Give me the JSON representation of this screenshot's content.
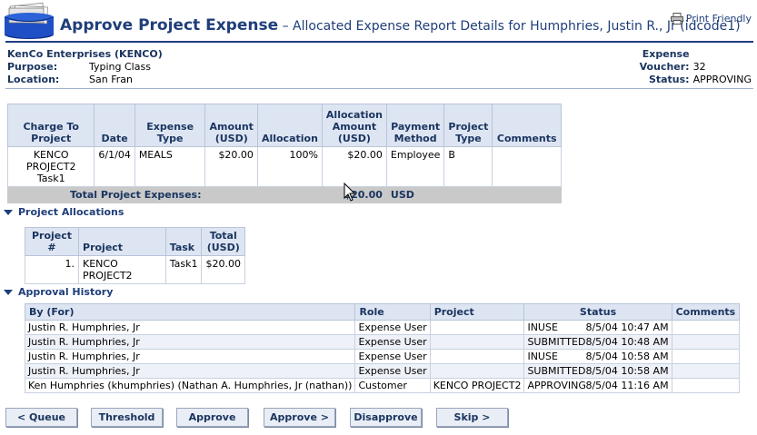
{
  "header": {
    "title": "Approve Project Expense",
    "subtitle": " – Allocated Expense Report Details for Humphries, Justin R., Jr (idcode1)",
    "print_label": "Print Friendly",
    "logo_icon": "folder-stack-icon",
    "print_icon": "printer-icon",
    "accent_color": "#1f3e7a"
  },
  "info": {
    "company": "KenCo Enterprises (KENCO)",
    "purpose_label": "Purpose:",
    "purpose": "Typing Class",
    "location_label": "Location:",
    "location": "San Fran",
    "voucher_label": "Expense Voucher:",
    "voucher": "32",
    "status_label": "Status:",
    "status": "APPROVING"
  },
  "expense_table": {
    "headers": [
      "Charge To Project",
      "Date",
      "Expense Type",
      "Amount (USD)",
      "Allocation",
      "Allocation Amount (USD)",
      "Payment Method",
      "Project Type",
      "Comments"
    ],
    "rows": [
      {
        "charge_to": "KENCO PROJECT2",
        "charge_task": "Task1",
        "date": "6/1/04",
        "expense_type": "MEALS",
        "amount": "$20.00",
        "allocation": "100%",
        "allocation_amount": "$20.00",
        "payment_method": "Employee",
        "project_type": "B",
        "comments": ""
      }
    ],
    "total_label": "Total Project Expenses:",
    "total_amount": "$20.00",
    "total_currency": "USD"
  },
  "allocations": {
    "section_title": "Project Allocations",
    "headers": [
      "Project #",
      "Project",
      "Task",
      "Total (USD)"
    ],
    "rows": [
      {
        "num": "1.",
        "project": "KENCO PROJECT2",
        "task": "Task1",
        "total": "$20.00"
      }
    ]
  },
  "history": {
    "section_title": "Approval History",
    "headers": [
      "By (For)",
      "Role",
      "Project",
      "Status",
      "Comments"
    ],
    "rows": [
      {
        "by": "Justin R. Humphries, Jr",
        "role": "Expense User",
        "project": "",
        "status": "INUSE",
        "time": "8/5/04 10:47 AM",
        "comments": ""
      },
      {
        "by": "Justin R. Humphries, Jr",
        "role": "Expense User",
        "project": "",
        "status": "SUBMITTED",
        "time": "8/5/04 10:48 AM",
        "comments": ""
      },
      {
        "by": "Justin R. Humphries, Jr",
        "role": "Expense User",
        "project": "",
        "status": "INUSE",
        "time": "8/5/04 10:58 AM",
        "comments": ""
      },
      {
        "by": "Justin R. Humphries, Jr",
        "role": "Expense User",
        "project": "",
        "status": "SUBMITTED",
        "time": "8/5/04 10:58 AM",
        "comments": ""
      },
      {
        "by": "Ken Humphries (khumphries) (Nathan A. Humphries, Jr (nathan))",
        "role": "Customer",
        "project": "KENCO PROJECT2",
        "status": "APPROVING",
        "time": "8/5/04 11:16 AM",
        "comments": ""
      }
    ]
  },
  "buttons": {
    "queue": "< Queue",
    "threshold": "Threshold",
    "approve": "Approve",
    "approve_next": "Approve >",
    "disapprove": "Disapprove",
    "skip": "Skip >"
  }
}
